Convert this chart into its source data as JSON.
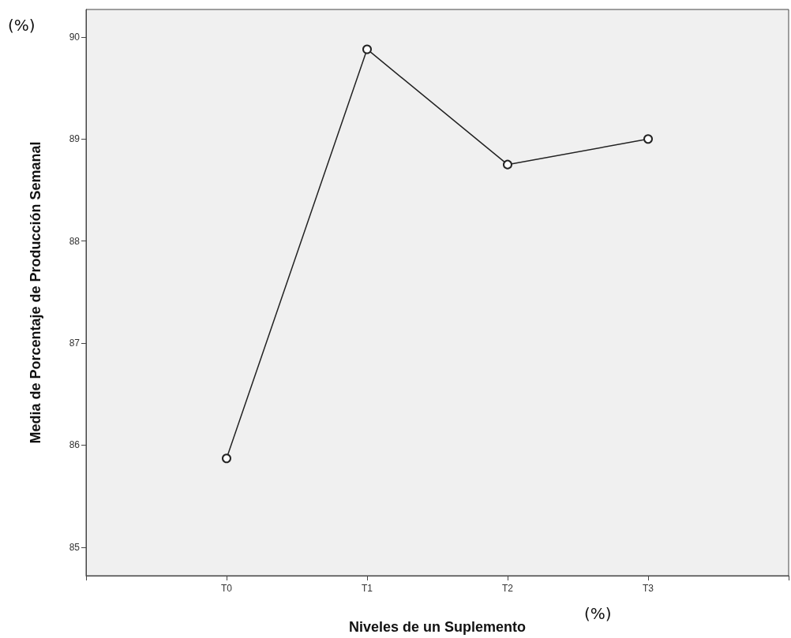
{
  "chart_data": {
    "type": "line",
    "xlabel": "Niveles de un Suplemento",
    "ylabel": "Media de Porcentaje de Producción Semanal",
    "categories": [
      "T0",
      "T1",
      "T2",
      "T3"
    ],
    "series": [
      {
        "color": "#222222",
        "values": [
          85.87,
          89.88,
          88.75,
          89.0
        ]
      }
    ],
    "ylim": [
      84.72,
      90.27
    ],
    "yticks": [
      85,
      86,
      87,
      88,
      89,
      90
    ],
    "marker": "circle",
    "line_style": "solid",
    "annotations": [
      "(%)",
      "(%)"
    ]
  }
}
